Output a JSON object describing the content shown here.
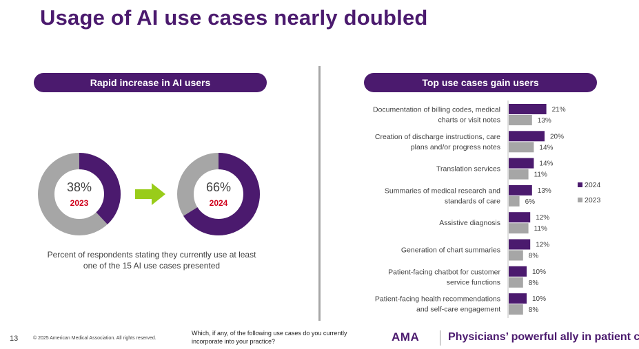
{
  "slide": {
    "title": "Usage of AI use cases nearly doubled",
    "left_pill": "Rapid increase in AI users",
    "right_pill": "Top use cases gain users",
    "caption": "Percent of respondents stating they currently use at least one of the 15 AI use cases presented"
  },
  "colors": {
    "purple": "#4b1a6e",
    "gray": "#a6a6a6",
    "green_arrow": "#99cc1a",
    "year_red": "#d0021b"
  },
  "donuts": [
    {
      "pct_label": "38%",
      "year": "2023",
      "value": 38
    },
    {
      "pct_label": "66%",
      "year": "2024",
      "value": 66
    }
  ],
  "chart_data": {
    "type": "bar",
    "orientation": "horizontal",
    "categories": [
      "Documentation of billing codes, medical charts or visit notes",
      "Creation of discharge instructions, care plans and/or progress notes",
      "Translation services",
      "Summaries of medical research and standards of care",
      "Assistive diagnosis",
      "Generation of chart summaries",
      "Patient-facing chatbot for customer service functions",
      "Patient-facing health recommendations and self-care engagement"
    ],
    "category_lines": [
      [
        "Documentation of billing codes, medical",
        "charts or visit notes"
      ],
      [
        "Creation of discharge instructions, care",
        "plans and/or progress notes"
      ],
      [
        "Translation services"
      ],
      [
        "Summaries of medical research and",
        "standards of care"
      ],
      [
        "Assistive diagnosis"
      ],
      [
        "Generation of chart summaries"
      ],
      [
        "Patient-facing chatbot for customer",
        "service functions"
      ],
      [
        "Patient-facing health recommendations",
        "and self-care engagement"
      ]
    ],
    "series": [
      {
        "name": "2024",
        "values": [
          21,
          20,
          14,
          13,
          12,
          12,
          10,
          10
        ],
        "labels": [
          "21%",
          "20%",
          "14%",
          "13%",
          "12%",
          "12%",
          "10%",
          "10%"
        ]
      },
      {
        "name": "2023",
        "values": [
          13,
          14,
          11,
          6,
          11,
          8,
          8,
          8
        ],
        "labels": [
          "13%",
          "14%",
          "11%",
          "6%",
          "11%",
          "8%",
          "8%",
          "8%"
        ]
      }
    ],
    "legend": {
      "placement": "right",
      "items": [
        "2024",
        "2023"
      ]
    },
    "unit": "%"
  },
  "footer": {
    "page_number": "13",
    "copyright": "© 2025 American Medical Association. All rights reserved.",
    "question": "Which, if any, of the following use cases do you currently incorporate into your practice?",
    "logo_text": "AMA",
    "tagline": "Physicians’ powerful ally in patient care"
  }
}
